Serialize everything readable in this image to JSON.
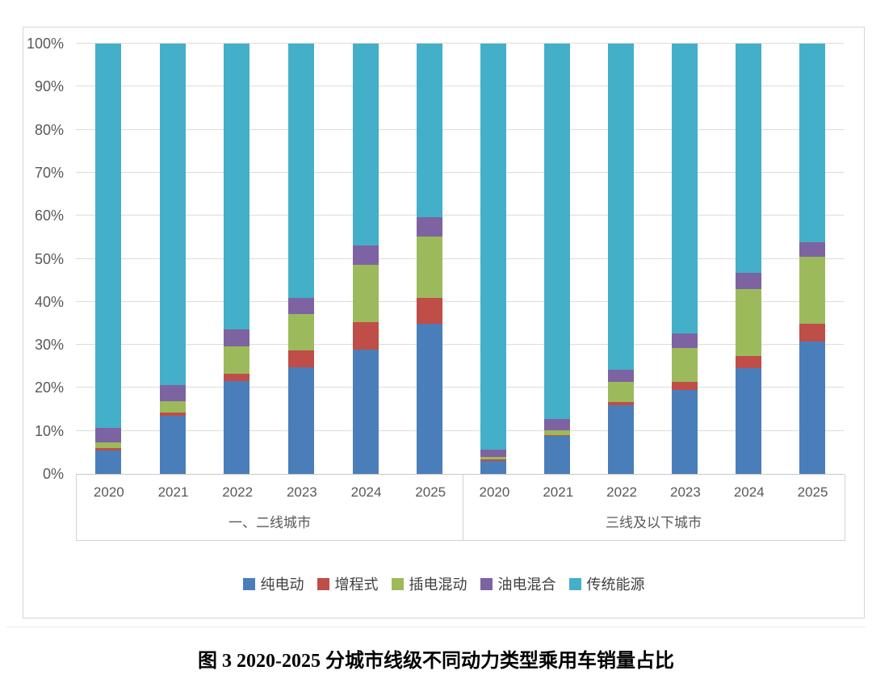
{
  "caption": "图 3 2020-2025 分城市线级不同动力类型乘用车销量占比",
  "chart_data": {
    "type": "bar",
    "subtype": "stacked-100-percent-column",
    "title": "",
    "xlabel": "",
    "ylabel": "",
    "ylim": [
      0,
      100
    ],
    "grid": true,
    "legend_position": "bottom",
    "y_ticks": [
      "0%",
      "10%",
      "20%",
      "30%",
      "40%",
      "50%",
      "60%",
      "70%",
      "80%",
      "90%",
      "100%"
    ],
    "series": [
      {
        "name": "纯电动",
        "color": "#4a7eba"
      },
      {
        "name": "增程式",
        "color": "#bf4d48"
      },
      {
        "name": "插电混动",
        "color": "#9cba5b"
      },
      {
        "name": "油电混合",
        "color": "#7d63a1"
      },
      {
        "name": "传统能源",
        "color": "#44afc8"
      }
    ],
    "groups": [
      {
        "label": "一、二线城市",
        "categories": [
          "2020",
          "2021",
          "2022",
          "2023",
          "2024",
          "2025"
        ],
        "values": [
          [
            5.5,
            0.5,
            1.3,
            3.4,
            89.3
          ],
          [
            13.5,
            0.8,
            2.6,
            3.7,
            79.4
          ],
          [
            21.6,
            1.7,
            6.3,
            4.0,
            66.4
          ],
          [
            24.8,
            3.9,
            8.4,
            3.8,
            59.1
          ],
          [
            28.9,
            6.4,
            13.3,
            4.5,
            46.9
          ],
          [
            34.9,
            6.0,
            14.3,
            4.4,
            40.4
          ]
        ]
      },
      {
        "label": "三线及以下城市",
        "categories": [
          "2020",
          "2021",
          "2022",
          "2023",
          "2024",
          "2025"
        ],
        "values": [
          [
            3.0,
            0.3,
            0.7,
            1.6,
            94.4
          ],
          [
            8.8,
            0.3,
            1.1,
            2.5,
            87.3
          ],
          [
            15.9,
            0.8,
            4.7,
            2.8,
            75.8
          ],
          [
            19.5,
            1.9,
            7.9,
            3.3,
            67.4
          ],
          [
            24.6,
            2.8,
            15.6,
            3.7,
            53.3
          ],
          [
            30.8,
            4.1,
            15.6,
            3.3,
            46.2
          ]
        ]
      }
    ]
  }
}
